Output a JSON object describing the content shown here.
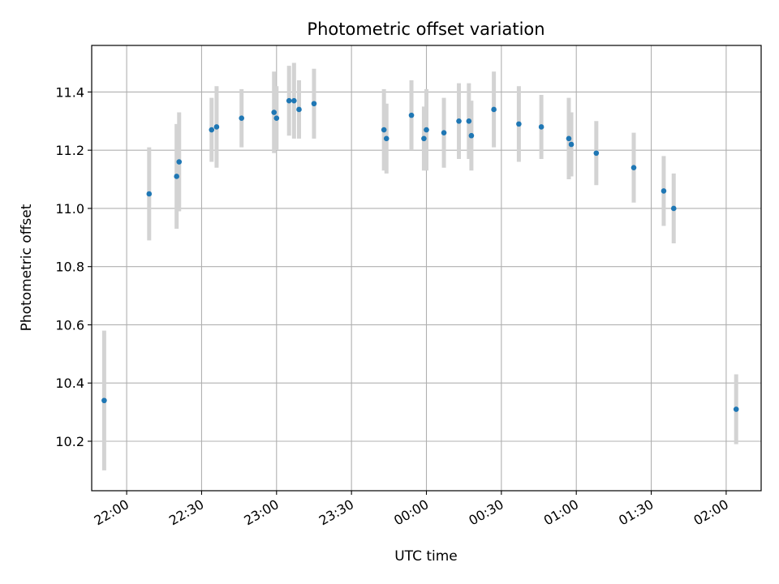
{
  "chart_data": {
    "type": "scatter",
    "title": "Photometric offset variation",
    "xlabel": "UTC time",
    "ylabel": "Photometric offset",
    "x_unit": "time of day (UTC, HH:MM), spanning midnight",
    "xlim": [
      "21:46",
      "02:14"
    ],
    "ylim": [
      10.03,
      11.56
    ],
    "x_ticks": [
      "22:00",
      "22:30",
      "23:00",
      "23:30",
      "00:00",
      "00:30",
      "01:00",
      "01:30",
      "02:00"
    ],
    "y_ticks": [
      "10.2",
      "10.4",
      "10.6",
      "10.8",
      "11.0",
      "11.2",
      "11.4"
    ],
    "grid": true,
    "colors": {
      "point": "#1f77b4",
      "errorbar": "#d3d3d3",
      "grid": "#b0b0b0"
    },
    "points": [
      {
        "x": "21:51",
        "y": 10.34,
        "yerr": 0.24
      },
      {
        "x": "22:09",
        "y": 11.05,
        "yerr": 0.16
      },
      {
        "x": "22:20",
        "y": 11.11,
        "yerr": 0.18
      },
      {
        "x": "22:21",
        "y": 11.16,
        "yerr": 0.17
      },
      {
        "x": "22:34",
        "y": 11.27,
        "yerr": 0.11
      },
      {
        "x": "22:36",
        "y": 11.28,
        "yerr": 0.14
      },
      {
        "x": "22:46",
        "y": 11.31,
        "yerr": 0.1
      },
      {
        "x": "22:59",
        "y": 11.33,
        "yerr": 0.14
      },
      {
        "x": "23:00",
        "y": 11.31,
        "yerr": 0.11
      },
      {
        "x": "23:05",
        "y": 11.37,
        "yerr": 0.12
      },
      {
        "x": "23:07",
        "y": 11.37,
        "yerr": 0.13
      },
      {
        "x": "23:09",
        "y": 11.34,
        "yerr": 0.1
      },
      {
        "x": "23:15",
        "y": 11.36,
        "yerr": 0.12
      },
      {
        "x": "23:43",
        "y": 11.27,
        "yerr": 0.14
      },
      {
        "x": "23:44",
        "y": 11.24,
        "yerr": 0.12
      },
      {
        "x": "23:54",
        "y": 11.32,
        "yerr": 0.12
      },
      {
        "x": "23:59",
        "y": 11.24,
        "yerr": 0.11
      },
      {
        "x": "00:00",
        "y": 11.27,
        "yerr": 0.14
      },
      {
        "x": "00:07",
        "y": 11.26,
        "yerr": 0.12
      },
      {
        "x": "00:13",
        "y": 11.3,
        "yerr": 0.13
      },
      {
        "x": "00:17",
        "y": 11.3,
        "yerr": 0.13
      },
      {
        "x": "00:18",
        "y": 11.25,
        "yerr": 0.12
      },
      {
        "x": "00:27",
        "y": 11.34,
        "yerr": 0.13
      },
      {
        "x": "00:37",
        "y": 11.29,
        "yerr": 0.13
      },
      {
        "x": "00:46",
        "y": 11.28,
        "yerr": 0.11
      },
      {
        "x": "00:57",
        "y": 11.24,
        "yerr": 0.14
      },
      {
        "x": "00:58",
        "y": 11.22,
        "yerr": 0.11
      },
      {
        "x": "01:08",
        "y": 11.19,
        "yerr": 0.11
      },
      {
        "x": "01:23",
        "y": 11.14,
        "yerr": 0.12
      },
      {
        "x": "01:35",
        "y": 11.06,
        "yerr": 0.12
      },
      {
        "x": "01:39",
        "y": 11.0,
        "yerr": 0.12
      },
      {
        "x": "02:04",
        "y": 10.31,
        "yerr": 0.12
      }
    ]
  }
}
